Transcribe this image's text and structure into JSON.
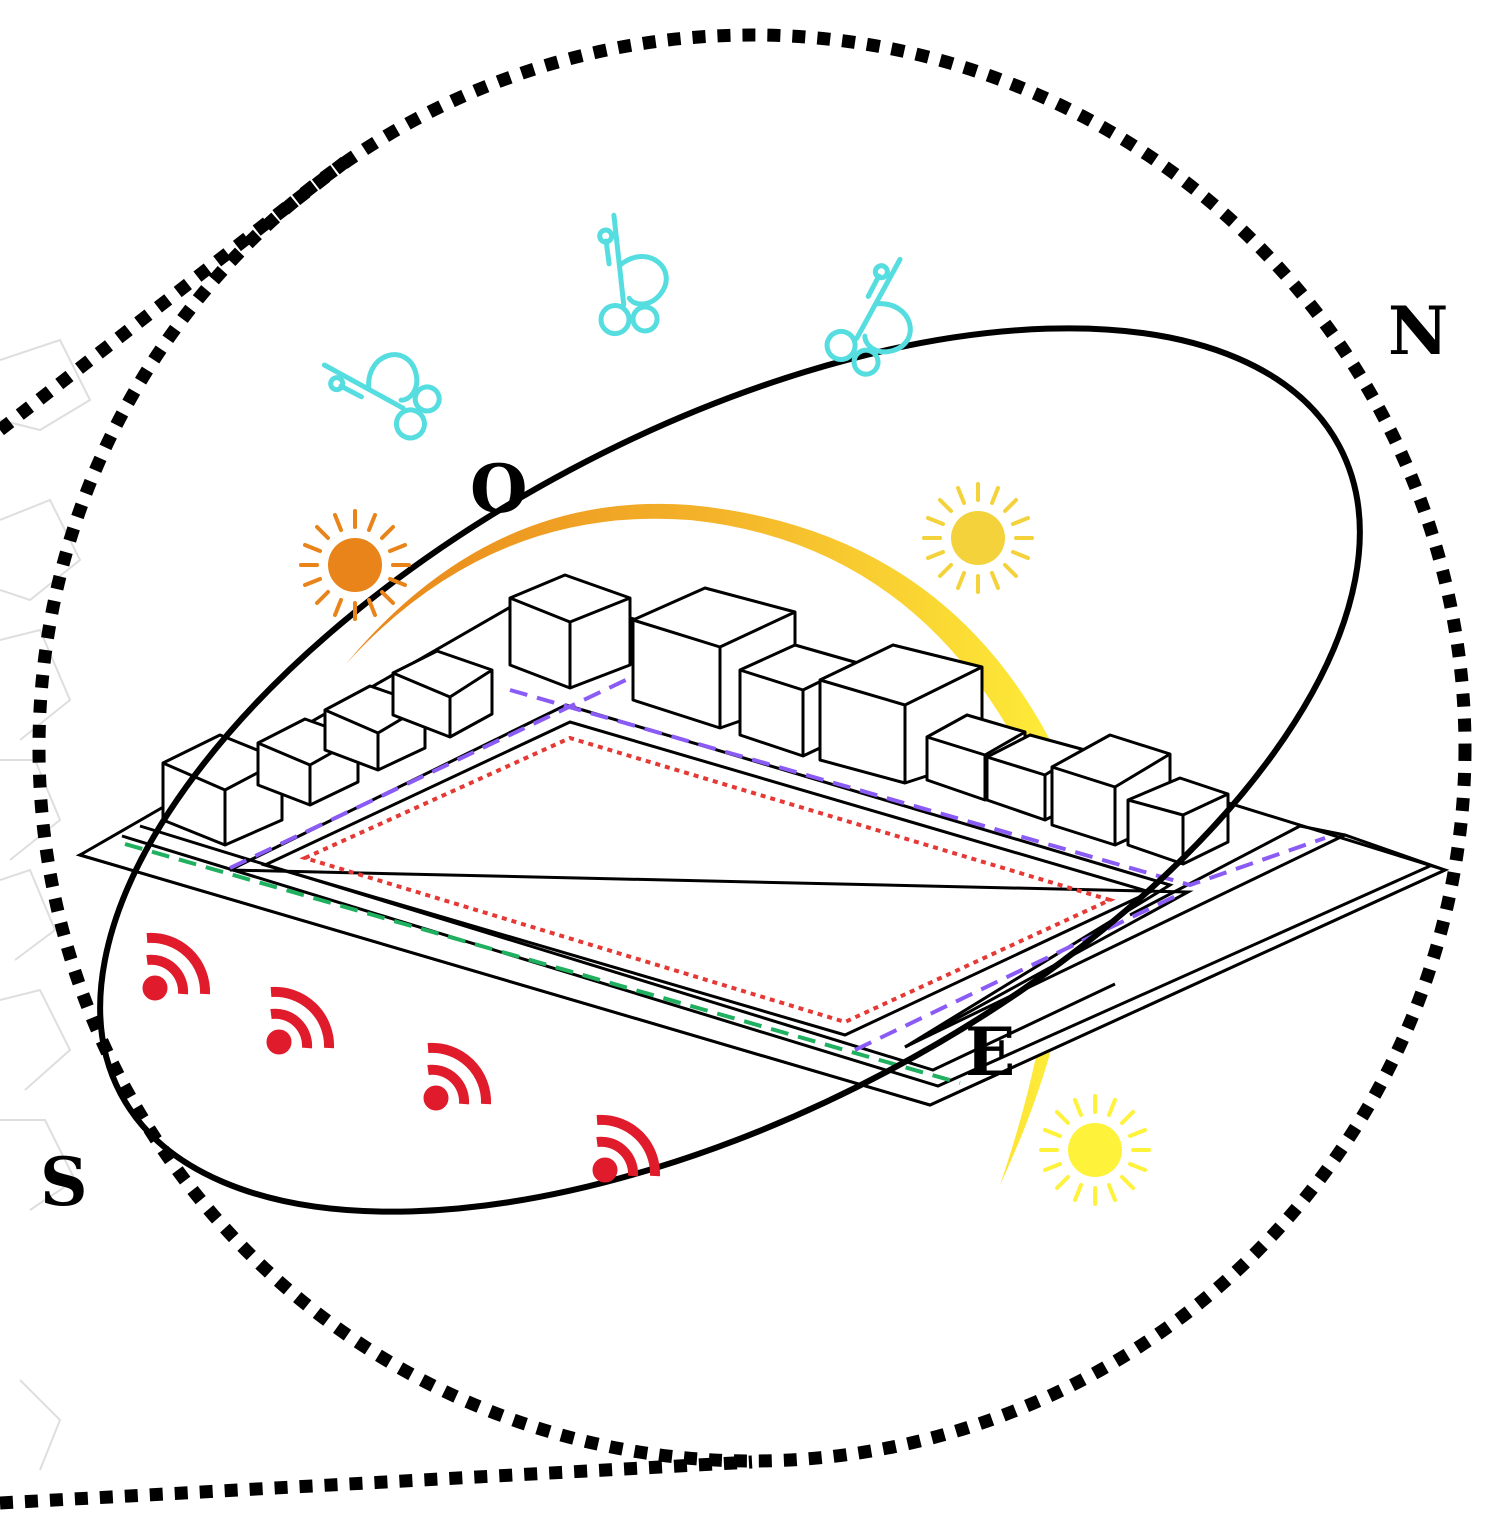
{
  "compass": {
    "north": "N",
    "south": "S",
    "east": "E",
    "west": "O"
  },
  "colors": {
    "background": "#ffffff",
    "outline": "#000000",
    "wind": "#55dde0",
    "noise": "#e01b2b",
    "sun_morning": "#e8841a",
    "sun_noon": "#f4d23c",
    "sun_evening": "#fff23a",
    "path_purple": "#8a5cf5",
    "path_green": "#1fb060",
    "path_red": "#e53935"
  },
  "icons": {
    "wind": "wind-icon",
    "sun": "sun-icon",
    "noise": "wifi-signal-icon"
  }
}
